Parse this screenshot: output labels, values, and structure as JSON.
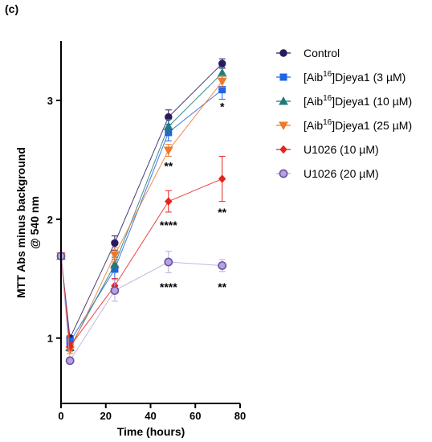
{
  "panel_label": "(c)",
  "chart_data": {
    "type": "line",
    "title": "",
    "xlabel": "Time (hours)",
    "ylabel_lines": [
      "MTT Abs minus background",
      "@ 540 nm"
    ],
    "xlim": [
      0,
      80
    ],
    "ylim": [
      0.45,
      3.5
    ],
    "x_ticks": [
      0,
      20,
      40,
      60,
      80
    ],
    "y_ticks": [
      1,
      2,
      3
    ],
    "grid": false,
    "legend_position": "right",
    "x": [
      0,
      4,
      24,
      48,
      72
    ],
    "series": [
      {
        "name": "Control",
        "name_parts": {
          "prefix": "Control",
          "sup": "",
          "suffix": ""
        },
        "color": "#2a1a5e",
        "marker": "circle",
        "values": [
          1.69,
          1.0,
          1.8,
          2.86,
          3.31
        ],
        "errors": [
          0,
          0.02,
          0.06,
          0.06,
          0.04
        ]
      },
      {
        "name": "[Aib16]Djeya1 (3 µM)",
        "name_parts": {
          "prefix": "[Aib",
          "sup": "16",
          "suffix": "]Djeya1 (3 µM)"
        },
        "color": "#1f63e6",
        "marker": "square",
        "values": [
          1.69,
          0.97,
          1.58,
          2.73,
          3.09
        ],
        "errors": [
          0,
          0.03,
          0.08,
          0.07,
          0.08
        ]
      },
      {
        "name": "[Aib16]Djeya1 (10 µM)",
        "name_parts": {
          "prefix": "[Aib",
          "sup": "16",
          "suffix": "]Djeya1 (10 µM)"
        },
        "color": "#227a7a",
        "marker": "triangle-up",
        "values": [
          1.69,
          0.92,
          1.62,
          2.78,
          3.23
        ],
        "errors": [
          0,
          0.03,
          0.06,
          0.06,
          0.05
        ]
      },
      {
        "name": "[Aib16]Djeya1 (25 µM)",
        "name_parts": {
          "prefix": "[Aib",
          "sup": "16",
          "suffix": "]Djeya1 (25 µM)"
        },
        "color": "#f0782a",
        "marker": "triangle-down",
        "values": [
          1.69,
          0.9,
          1.7,
          2.58,
          3.16
        ],
        "errors": [
          0,
          0.03,
          0.06,
          0.05,
          0.05
        ]
      },
      {
        "name": "U1026 (10 µM)",
        "name_parts": {
          "prefix": "U1026 (10 µM)",
          "sup": "",
          "suffix": ""
        },
        "color": "#e8231e",
        "marker": "diamond",
        "values": [
          1.69,
          0.93,
          1.44,
          2.15,
          2.34
        ],
        "errors": [
          0,
          0.03,
          0.06,
          0.09,
          0.19
        ]
      },
      {
        "name": "U1026 (20 µM)",
        "name_parts": {
          "prefix": "U1026 (20 µM)",
          "sup": "",
          "suffix": ""
        },
        "color": "#6b50a8",
        "fill": "#b6a2dc",
        "line_color": "#b9acd9",
        "marker": "circle-open",
        "values": [
          1.69,
          0.81,
          1.4,
          1.64,
          1.61
        ],
        "errors": [
          0,
          0.02,
          0.09,
          0.09,
          0.05
        ]
      }
    ],
    "annotations": [
      {
        "text": "*",
        "x": 72,
        "y": 2.95
      },
      {
        "text": "**",
        "x": 48,
        "y": 2.45
      },
      {
        "text": "**",
        "x": 72,
        "y": 2.06
      },
      {
        "text": "****",
        "x": 48,
        "y": 1.95
      },
      {
        "text": "****",
        "x": 48,
        "y": 1.43
      },
      {
        "text": "**",
        "x": 72,
        "y": 1.43
      }
    ]
  }
}
